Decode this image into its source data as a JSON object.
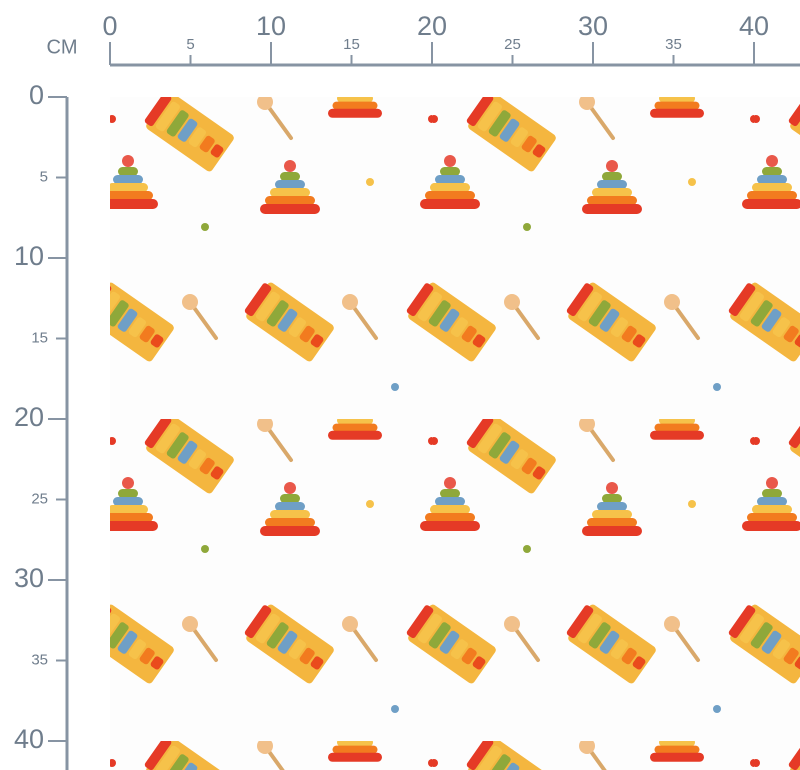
{
  "ruler": {
    "unit": "CM",
    "top_ticks": [
      0,
      5,
      10,
      15,
      20,
      25,
      30,
      35,
      40
    ],
    "left_ticks": [
      0,
      5,
      10,
      15,
      20,
      25,
      30,
      35,
      40
    ]
  }
}
